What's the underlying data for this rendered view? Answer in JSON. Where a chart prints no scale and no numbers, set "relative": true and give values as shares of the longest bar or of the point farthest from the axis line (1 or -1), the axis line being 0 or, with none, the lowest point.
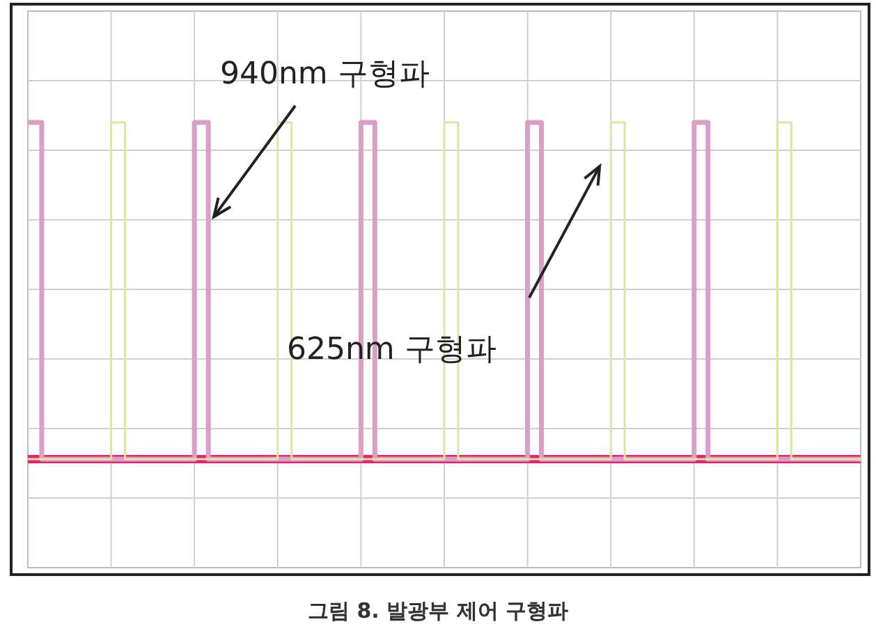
{
  "chart_data": {
    "type": "step",
    "relative": true,
    "title": "그림 8. 발광부 제어 구형파",
    "grid": true,
    "categories": [
      null,
      null,
      null,
      null,
      null,
      null,
      null,
      null,
      null,
      null,
      null,
      null,
      null,
      null,
      null,
      null,
      null,
      null,
      null,
      null,
      null,
      null,
      null,
      null,
      null,
      null,
      null,
      null,
      null,
      null,
      null,
      null,
      null,
      null,
      null,
      null,
      null,
      null,
      null,
      null,
      null,
      null,
      null,
      null,
      null,
      null,
      null,
      null,
      null,
      null,
      null,
      null,
      null,
      null,
      null,
      null,
      null,
      null,
      null,
      null,
      null,
      null,
      null,
      null,
      null,
      null,
      null,
      null,
      null,
      null,
      null,
      null,
      null,
      null,
      null,
      null,
      null,
      null,
      null,
      null,
      null,
      null,
      null,
      null,
      null,
      null,
      null,
      null,
      null,
      null,
      null,
      null,
      null,
      null,
      null,
      null,
      null,
      null,
      null,
      null,
      null,
      null,
      null,
      null,
      null,
      null,
      null,
      null,
      null,
      null,
      null,
      null,
      null,
      null,
      null,
      null,
      null,
      null,
      null,
      null
    ],
    "series": [
      {
        "name": "940nm 구형파",
        "color": "#d8a0c8",
        "values": [
          1,
          1,
          0,
          0,
          0,
          0,
          0,
          0,
          0,
          0,
          0,
          0,
          0,
          0,
          0,
          0,
          0,
          0,
          0,
          0,
          0,
          0,
          0,
          0,
          1,
          1,
          0,
          0,
          0,
          0,
          0,
          0,
          0,
          0,
          0,
          0,
          0,
          0,
          0,
          0,
          0,
          0,
          0,
          0,
          0,
          0,
          0,
          0,
          1,
          1,
          0,
          0,
          0,
          0,
          0,
          0,
          0,
          0,
          0,
          0,
          0,
          0,
          0,
          0,
          0,
          0,
          0,
          0,
          0,
          0,
          0,
          0,
          1,
          1,
          0,
          0,
          0,
          0,
          0,
          0,
          0,
          0,
          0,
          0,
          0,
          0,
          0,
          0,
          0,
          0,
          0,
          0,
          0,
          0,
          0,
          0,
          1,
          1,
          0,
          0,
          0,
          0,
          0,
          0,
          0,
          0,
          0,
          0,
          0,
          0,
          0,
          0,
          0,
          0,
          0,
          0,
          0,
          0,
          0,
          0
        ]
      },
      {
        "name": "625nm 구형파",
        "color": "#dde6a0",
        "values": [
          0,
          0,
          0,
          0,
          0,
          0,
          0,
          0,
          0,
          0,
          0,
          0,
          1,
          1,
          0,
          0,
          0,
          0,
          0,
          0,
          0,
          0,
          0,
          0,
          0,
          0,
          0,
          0,
          0,
          0,
          0,
          0,
          0,
          0,
          0,
          0,
          1,
          1,
          0,
          0,
          0,
          0,
          0,
          0,
          0,
          0,
          0,
          0,
          0,
          0,
          0,
          0,
          0,
          0,
          0,
          0,
          0,
          0,
          0,
          0,
          1,
          1,
          0,
          0,
          0,
          0,
          0,
          0,
          0,
          0,
          0,
          0,
          0,
          0,
          0,
          0,
          0,
          0,
          0,
          0,
          0,
          0,
          0,
          0,
          1,
          1,
          0,
          0,
          0,
          0,
          0,
          0,
          0,
          0,
          0,
          0,
          0,
          0,
          0,
          0,
          0,
          0,
          0,
          0,
          0,
          0,
          0,
          0,
          1,
          1,
          0,
          0,
          0,
          0,
          0,
          0,
          0,
          0,
          0,
          0
        ]
      }
    ],
    "ref_lines": [
      {
        "axis": "y",
        "value": 0,
        "color": "#e8246e"
      }
    ]
  }
}
